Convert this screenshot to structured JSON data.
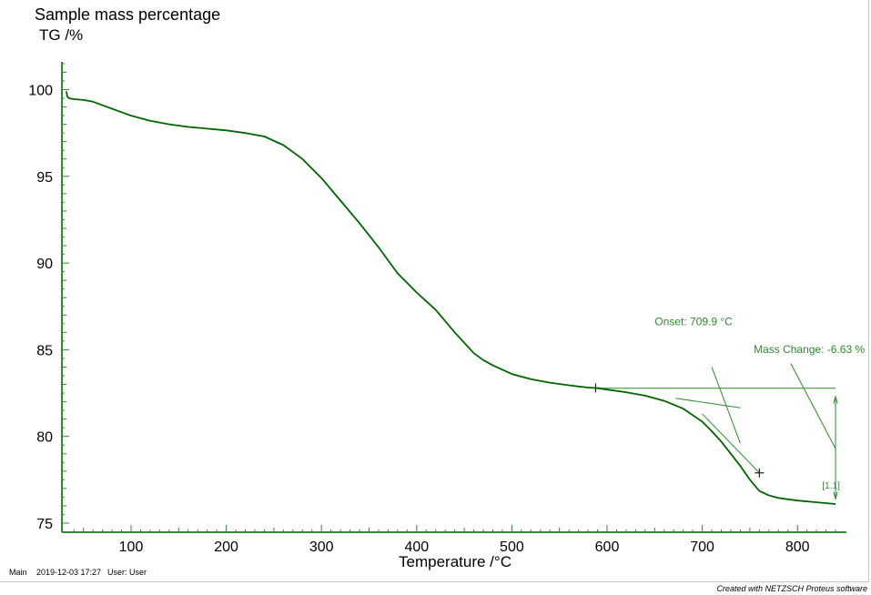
{
  "footer": {
    "main": "Main",
    "datetime": "2019-12-03 17:27",
    "user": "User: User",
    "credit": "Created with NETZSCH Proteus software"
  },
  "colors": {
    "curve": "#006400",
    "axis": "#2e8b2e",
    "annotation": "#2e8b2e",
    "text": "#000000"
  },
  "chart_data": {
    "type": "line",
    "title": "Sample mass percentage",
    "ylabel": "TG /%",
    "xlabel": "Temperature /°C",
    "xlim": [
      30,
      850
    ],
    "ylim": [
      75,
      102
    ],
    "xticks": [
      100,
      200,
      300,
      400,
      500,
      600,
      700,
      800
    ],
    "yticks": [
      75,
      80,
      85,
      90,
      95,
      100
    ],
    "grid": false,
    "series": [
      {
        "x": [
          32,
          33,
          35,
          40,
          50,
          60,
          70,
          80,
          90,
          100,
          120,
          140,
          160,
          180,
          200,
          220,
          240,
          260,
          280,
          300,
          320,
          340,
          360,
          380,
          400,
          420,
          440,
          460,
          470,
          480,
          500,
          520,
          540,
          560,
          580,
          590,
          600,
          620,
          640,
          660,
          680,
          700,
          710,
          720,
          730,
          740,
          750,
          760,
          770,
          780,
          800,
          820,
          840
        ],
        "y": [
          99.9,
          99.6,
          99.5,
          99.45,
          99.4,
          99.3,
          99.1,
          98.9,
          98.7,
          98.5,
          98.2,
          98.0,
          97.85,
          97.75,
          97.65,
          97.5,
          97.3,
          96.8,
          96.0,
          94.9,
          93.6,
          92.3,
          90.9,
          89.4,
          88.3,
          87.3,
          86.0,
          84.8,
          84.4,
          84.1,
          83.6,
          83.3,
          83.1,
          82.95,
          82.82,
          82.78,
          82.7,
          82.55,
          82.35,
          82.05,
          81.6,
          80.85,
          80.3,
          79.7,
          79.0,
          78.3,
          77.5,
          76.85,
          76.6,
          76.45,
          76.3,
          76.2,
          76.1
        ]
      }
    ],
    "annotations": [
      {
        "label": "Onset: 709.9 °C",
        "x": 709.9
      },
      {
        "label": "Mass Change: -6.63 %",
        "value": -6.63
      },
      {
        "label": "[1.1]"
      }
    ],
    "markers": [
      {
        "x": 588,
        "y": 82.8
      },
      {
        "x": 760,
        "y": 77.9
      }
    ]
  }
}
